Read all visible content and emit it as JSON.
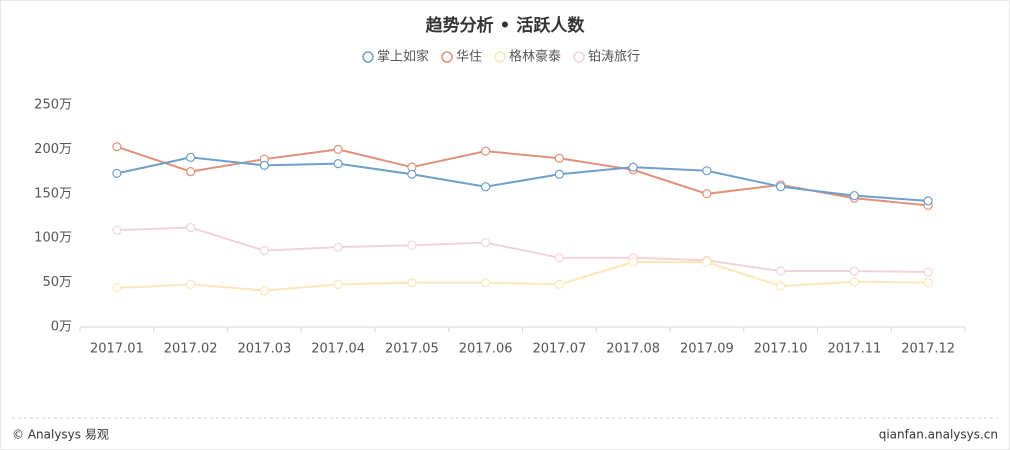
{
  "chart_data": {
    "type": "line",
    "title": "趋势分析 • 活跃人数",
    "categories": [
      "2017.01",
      "2017.02",
      "2017.03",
      "2017.04",
      "2017.05",
      "2017.06",
      "2017.07",
      "2017.08",
      "2017.09",
      "2017.10",
      "2017.11",
      "2017.12"
    ],
    "series": [
      {
        "name": "掌上如家",
        "color": "#6f9fcb",
        "values": [
          173,
          191,
          182,
          184,
          172,
          158,
          172,
          180,
          176,
          158,
          148,
          142
        ]
      },
      {
        "name": "华住",
        "color": "#e0917a",
        "values": [
          203,
          175,
          189,
          200,
          180,
          198,
          190,
          177,
          150,
          160,
          145,
          137
        ]
      },
      {
        "name": "格林豪泰",
        "color": "#fbe8b8",
        "values": [
          44,
          48,
          41,
          48,
          50,
          50,
          48,
          73,
          73,
          46,
          51,
          50
        ]
      },
      {
        "name": "铂涛旅行",
        "color": "#f3d3db",
        "values": [
          109,
          112,
          86,
          90,
          92,
          95,
          78,
          78,
          75,
          63,
          63,
          62
        ]
      }
    ],
    "ylim": [
      0,
      250
    ],
    "yticks": [
      {
        "value": 0,
        "label": "0万"
      },
      {
        "value": 50,
        "label": "50万"
      },
      {
        "value": 100,
        "label": "100万"
      },
      {
        "value": 150,
        "label": "150万"
      },
      {
        "value": 200,
        "label": "200万"
      },
      {
        "value": 250,
        "label": "250万"
      }
    ],
    "grid": false,
    "footer_left": "© Analysys 易观",
    "footer_right": "qianfan.analysys.cn"
  }
}
